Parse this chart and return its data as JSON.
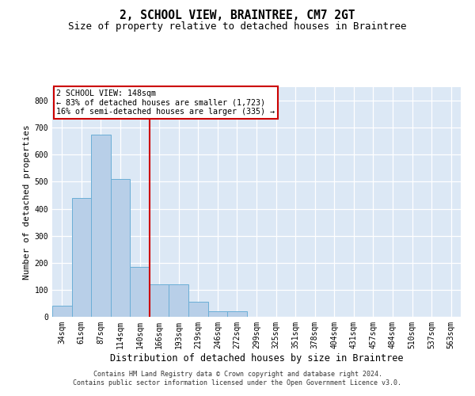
{
  "title": "2, SCHOOL VIEW, BRAINTREE, CM7 2GT",
  "subtitle": "Size of property relative to detached houses in Braintree",
  "xlabel": "Distribution of detached houses by size in Braintree",
  "ylabel": "Number of detached properties",
  "footer_line1": "Contains HM Land Registry data © Crown copyright and database right 2024.",
  "footer_line2": "Contains public sector information licensed under the Open Government Licence v3.0.",
  "categories": [
    "34sqm",
    "61sqm",
    "87sqm",
    "114sqm",
    "140sqm",
    "166sqm",
    "193sqm",
    "219sqm",
    "246sqm",
    "272sqm",
    "299sqm",
    "325sqm",
    "351sqm",
    "378sqm",
    "404sqm",
    "431sqm",
    "457sqm",
    "484sqm",
    "510sqm",
    "537sqm",
    "563sqm"
  ],
  "values": [
    40,
    440,
    675,
    510,
    185,
    120,
    120,
    55,
    20,
    20,
    0,
    0,
    0,
    0,
    0,
    0,
    0,
    0,
    0,
    0,
    0
  ],
  "bar_color": "#b8cfe8",
  "bar_edge_color": "#6baed6",
  "vline_x": 4.5,
  "vline_color": "#cc0000",
  "annotation_text": "2 SCHOOL VIEW: 148sqm\n← 83% of detached houses are smaller (1,723)\n16% of semi-detached houses are larger (335) →",
  "annotation_box_color": "white",
  "annotation_box_edge_color": "#cc0000",
  "ylim": [
    0,
    850
  ],
  "yticks": [
    0,
    100,
    200,
    300,
    400,
    500,
    600,
    700,
    800
  ],
  "bg_color": "#dce8f5",
  "grid_color": "white",
  "title_fontsize": 10.5,
  "subtitle_fontsize": 9,
  "tick_fontsize": 7,
  "ylabel_fontsize": 8,
  "xlabel_fontsize": 8.5
}
